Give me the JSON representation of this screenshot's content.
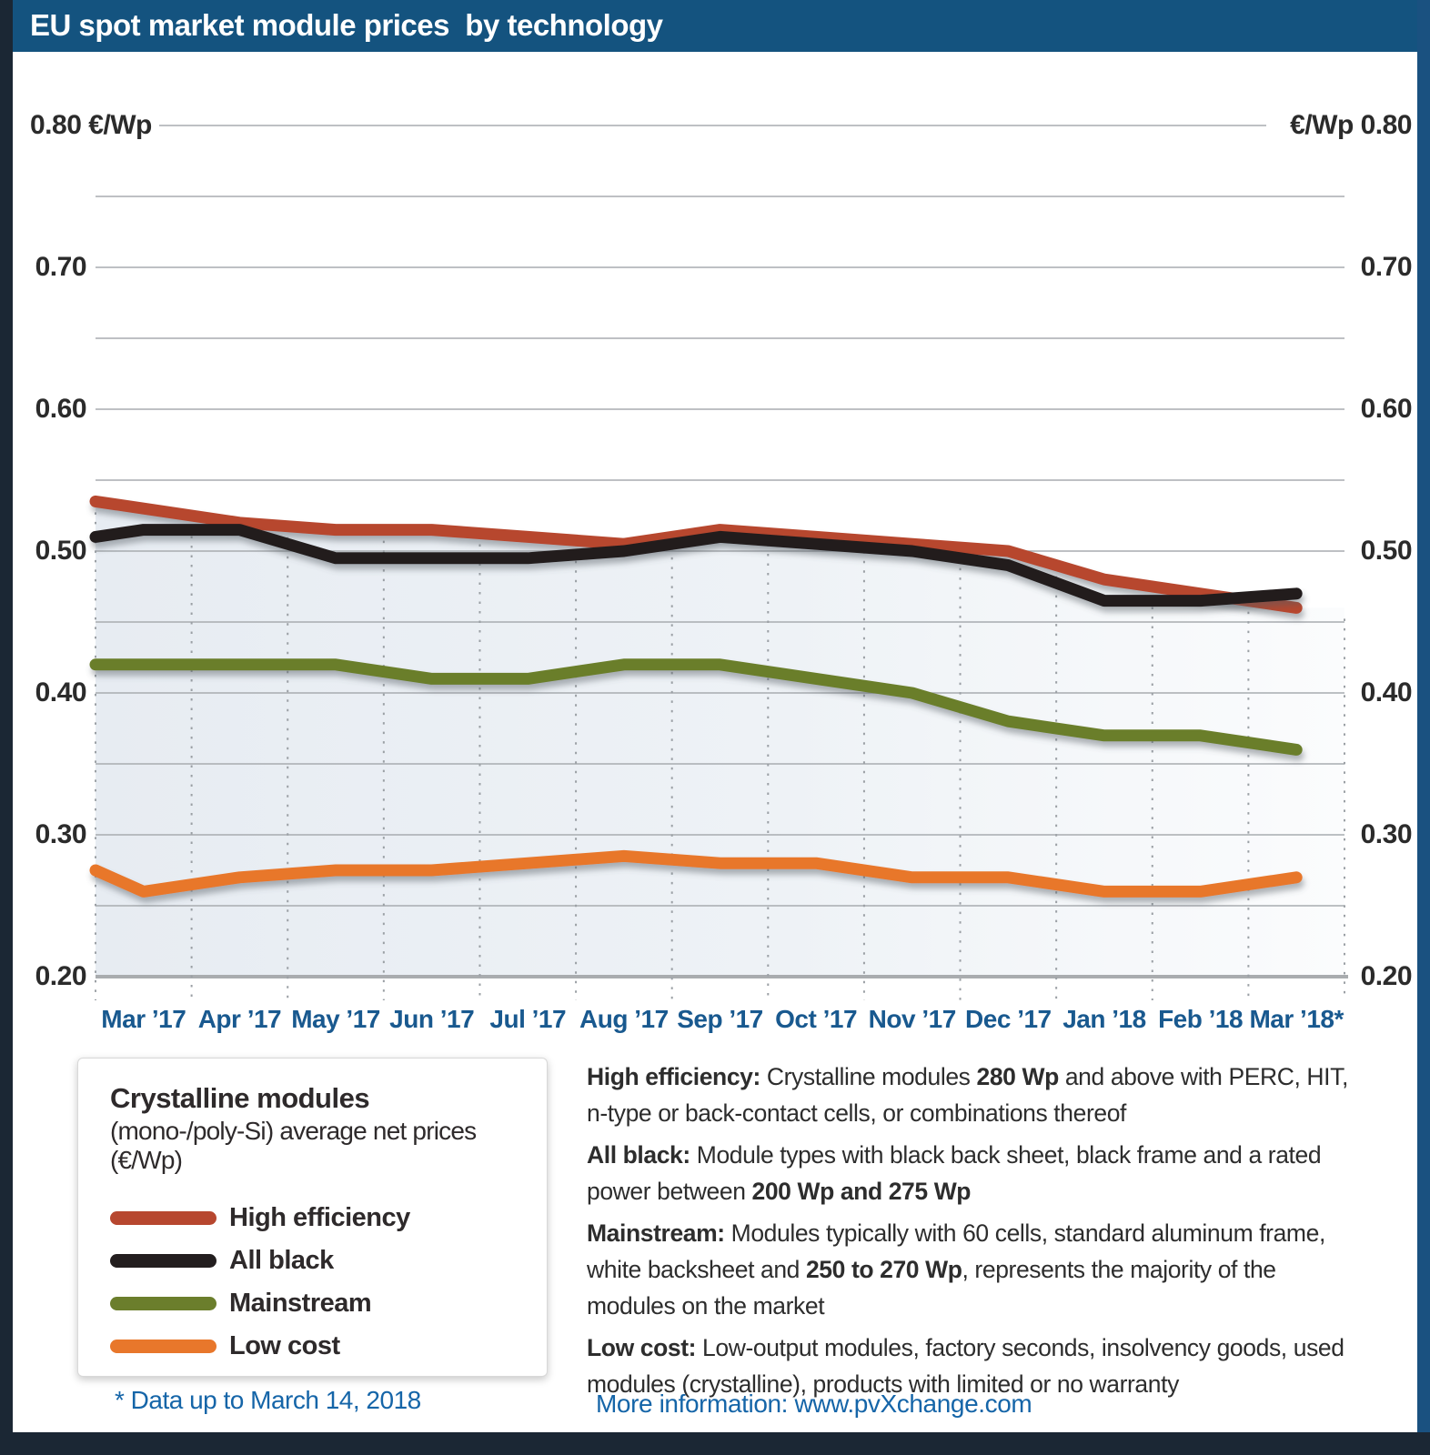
{
  "title": "EU spot market module prices  by technology",
  "axis": {
    "unit": "€/Wp",
    "tick_values": [
      0.8,
      0.7,
      0.6,
      0.5,
      0.4,
      0.3,
      0.2
    ],
    "left_labels": [
      "0.80 €/Wp",
      "0.70",
      "0.60",
      "0.50",
      "0.40",
      "0.30",
      "0.20"
    ],
    "right_labels": [
      "€/Wp 0.80",
      "0.70",
      "0.60",
      "0.50",
      "0.40",
      "0.30",
      "0.20"
    ]
  },
  "chart_data": {
    "type": "line",
    "title": "EU spot market module prices by technology",
    "categories": [
      "Mar ’17",
      "Apr ’17",
      "May ’17",
      "Jun ’17",
      "Jul ’17",
      "Aug ’17",
      "Sep ’17",
      "Oct ’17",
      "Nov ’17",
      "Dec ’17",
      "Jan ’18",
      "Feb ’18",
      "Mar ’18*"
    ],
    "ylabel": "€/Wp",
    "ylim": [
      0.2,
      0.8
    ],
    "grid_step": 0.05,
    "grid": true,
    "legend_position": "bottom-left box",
    "series": [
      {
        "name": "High efficiency",
        "color": "#b7472f",
        "values": [
          0.53,
          0.52,
          0.515,
          0.515,
          0.51,
          0.505,
          0.515,
          0.51,
          0.505,
          0.5,
          0.48,
          0.47,
          0.46
        ],
        "edge_left": 0.535
      },
      {
        "name": "All black",
        "color": "#231e1f",
        "values": [
          0.515,
          0.515,
          0.495,
          0.495,
          0.495,
          0.5,
          0.51,
          0.505,
          0.5,
          0.49,
          0.465,
          0.465,
          0.47
        ],
        "edge_left": 0.51
      },
      {
        "name": "Mainstream",
        "color": "#6b7e2c",
        "values": [
          0.42,
          0.42,
          0.42,
          0.41,
          0.41,
          0.42,
          0.42,
          0.41,
          0.4,
          0.38,
          0.37,
          0.37,
          0.36
        ],
        "edge_left": 0.42
      },
      {
        "name": "Low cost",
        "color": "#e8772b",
        "values": [
          0.26,
          0.27,
          0.275,
          0.275,
          0.28,
          0.285,
          0.28,
          0.28,
          0.27,
          0.27,
          0.26,
          0.26,
          0.27
        ],
        "edge_left": 0.275
      }
    ]
  },
  "legend": {
    "title": "Crystalline modules",
    "subtitle": "(mono-/poly-Si) average net prices (€/Wp)",
    "items": [
      {
        "label": "High efficiency",
        "color": "#b7472f"
      },
      {
        "label": "All black",
        "color": "#231e1f"
      },
      {
        "label": "Mainstream",
        "color": "#6b7e2c"
      },
      {
        "label": "Low cost",
        "color": "#e8772b"
      }
    ],
    "footnote": "* Data up to March 14, 2018"
  },
  "descriptions": [
    {
      "segments": [
        {
          "text": "High efficiency:",
          "bold": true
        },
        {
          "text": " Crystalline modules ",
          "bold": false
        },
        {
          "text": "280 Wp",
          "bold": true
        },
        {
          "text": " and above with PERC, HIT, n-type or back-contact cells, or combinations thereof",
          "bold": false
        }
      ]
    },
    {
      "segments": [
        {
          "text": "All black:",
          "bold": true
        },
        {
          "text": " Module types with black back sheet, black frame and a rated power between ",
          "bold": false
        },
        {
          "text": "200 Wp and 275 Wp",
          "bold": true
        }
      ]
    },
    {
      "segments": [
        {
          "text": "Mainstream:",
          "bold": true
        },
        {
          "text": " Modules typically with 60 cells, standard aluminum frame, white backsheet and ",
          "bold": false
        },
        {
          "text": "250 to 270 Wp",
          "bold": true
        },
        {
          "text": ", represents the majority of the modules on the market",
          "bold": false
        }
      ]
    },
    {
      "segments": [
        {
          "text": "Low cost:",
          "bold": true
        },
        {
          "text": " Low-output modules, factory seconds, insolvency goods, used modules (crystalline), products with limited or no warranty",
          "bold": false
        }
      ]
    }
  ],
  "more_info": "More information: www.pvXchange.com",
  "colors": {
    "title_bar": "#14537f",
    "frame_dark": "#1b2734",
    "frame_right": "#1a5180",
    "month_label": "#19598f",
    "note_blue": "#1565a8",
    "gridline": "#a8acb0",
    "axis_line": "#a9acaf",
    "fill_left": "#e7ecf2",
    "fill_right": "#fbfcfd"
  }
}
